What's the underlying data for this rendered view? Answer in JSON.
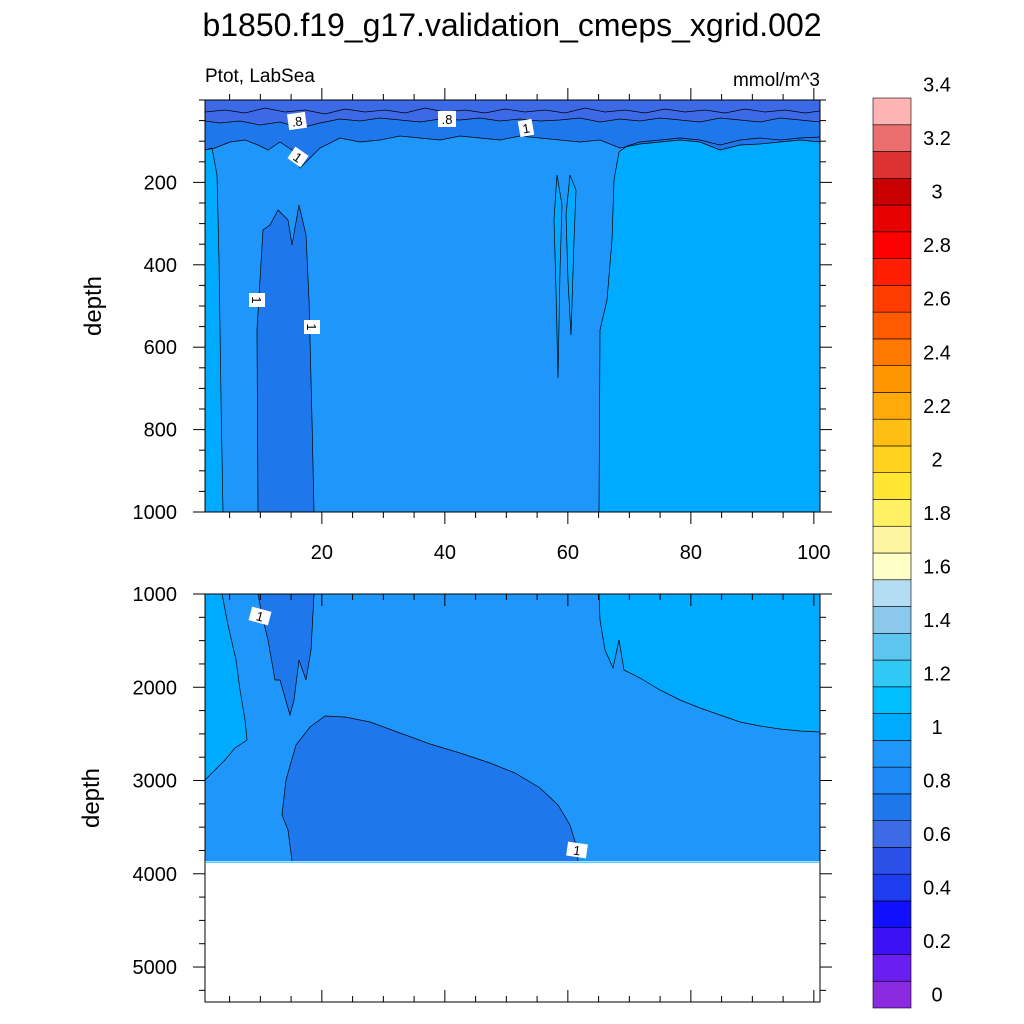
{
  "title": "b1850.f19_g17.validation_cmeps_xgrid.002",
  "chart_data": [
    {
      "type": "heatmap",
      "variable": "Ptot, LabSea",
      "units": "mmol/m^3",
      "ylabel": "depth",
      "x_range": [
        1,
        101
      ],
      "y_range": [
        0,
        1000
      ],
      "y_inverted": true,
      "x_ticks": [
        20,
        40,
        60,
        80,
        100
      ],
      "y_ticks": [
        200,
        400,
        600,
        800,
        1000
      ],
      "contour_labels": [
        ".8",
        ".8",
        "1",
        "1",
        "1",
        "1"
      ]
    },
    {
      "type": "heatmap",
      "ylabel": "depth",
      "x_range": [
        1,
        101
      ],
      "y_range": [
        1000,
        5375
      ],
      "y_inverted": true,
      "y_ticks": [
        1000,
        2000,
        3000,
        4000,
        5000
      ],
      "data_bottom_depth": 3875,
      "contour_labels": [
        "1",
        "1"
      ]
    }
  ],
  "colorbar": {
    "labels": [
      "0",
      "0.2",
      "0.4",
      "0.6",
      "0.8",
      "1",
      "1.2",
      "1.4",
      "1.6",
      "1.8",
      "2",
      "2.2",
      "2.4",
      "2.6",
      "2.8",
      "3",
      "3.2",
      "3.4"
    ],
    "colors": [
      "#8a2be2",
      "#6a1ef0",
      "#3d10f5",
      "#1010ff",
      "#1e3cf0",
      "#2b50e8",
      "#3d6ae6",
      "#1e78eb",
      "#1e88f5",
      "#1e96fa",
      "#00aaff",
      "#00beff",
      "#30c8f5",
      "#5ec4f0",
      "#8cc8ec",
      "#b4dcf2",
      "#ffffc8",
      "#fff5a0",
      "#fff064",
      "#ffe632",
      "#ffd21e",
      "#ffbe14",
      "#ffaa0a",
      "#ff9600",
      "#ff7800",
      "#ff5a00",
      "#ff3c00",
      "#ff1e00",
      "#ff0000",
      "#e60000",
      "#c80000",
      "#dc3232",
      "#eb6e6e",
      "#ffb4b4"
    ]
  },
  "field_colors": {
    "lev_07": "#3c6ae6",
    "lev_08": "#1e78eb",
    "lev_09": "#1e96fa",
    "lev_10": "#00aaff",
    "lev_11": "#00beff"
  }
}
